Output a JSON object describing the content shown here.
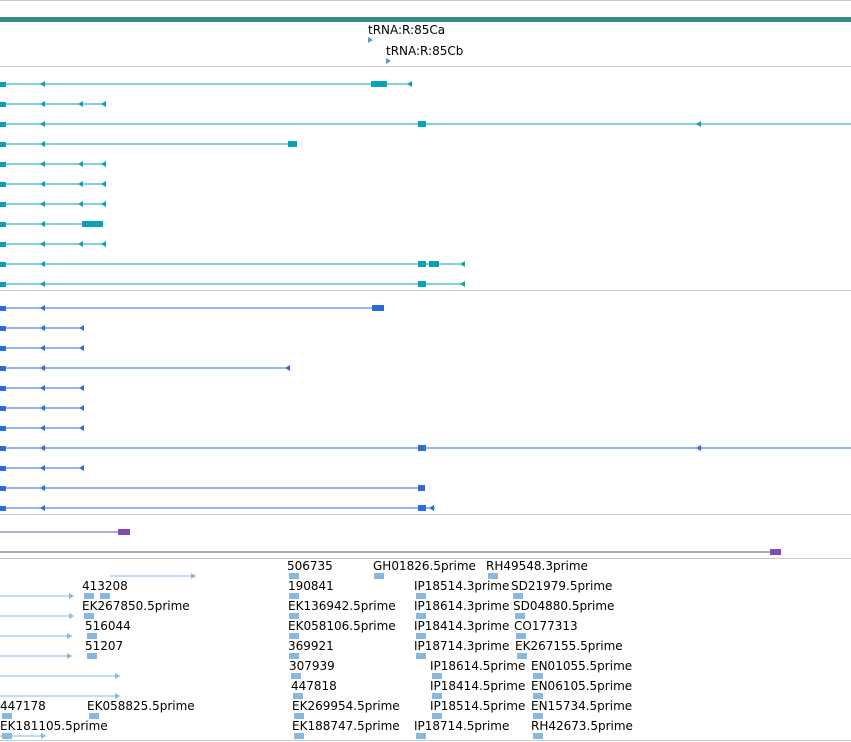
{
  "browser": {
    "colors": {
      "trna": "#4aa2bf",
      "transcript": "#0aa0b8",
      "protein": "#2f6bd6",
      "other": "#7c4fb0",
      "est": "#88b8e0",
      "scale": "#3a8a86"
    },
    "trna_labels": [
      "tRNA:R:85Ca",
      "tRNA:R:85Cb"
    ],
    "est_labels": [
      "506735",
      "GH01826.5prime",
      "RH49548.3prime",
      "413208",
      "190841",
      "IP18514.3prime",
      "SD21979.5prime",
      "EK267850.5prime",
      "EK136942.5prime",
      "IP18614.3prime",
      "SD04880.5prime",
      "516044",
      "EK058106.5prime",
      "IP18414.3prime",
      "CO177313",
      "51207",
      "369921",
      "IP18714.3prime",
      "EK267155.5prime",
      "307939",
      "IP18614.5prime",
      "EN01055.5prime",
      "447818",
      "IP18414.5prime",
      "EN06105.5prime",
      "447178",
      "EK058825.5prime",
      "EK269954.5prime",
      "IP18514.5prime",
      "EN15734.5prime",
      "EK181105.5prime",
      "EK188747.5prime",
      "IP18714.5prime",
      "RH42673.5prime"
    ]
  }
}
